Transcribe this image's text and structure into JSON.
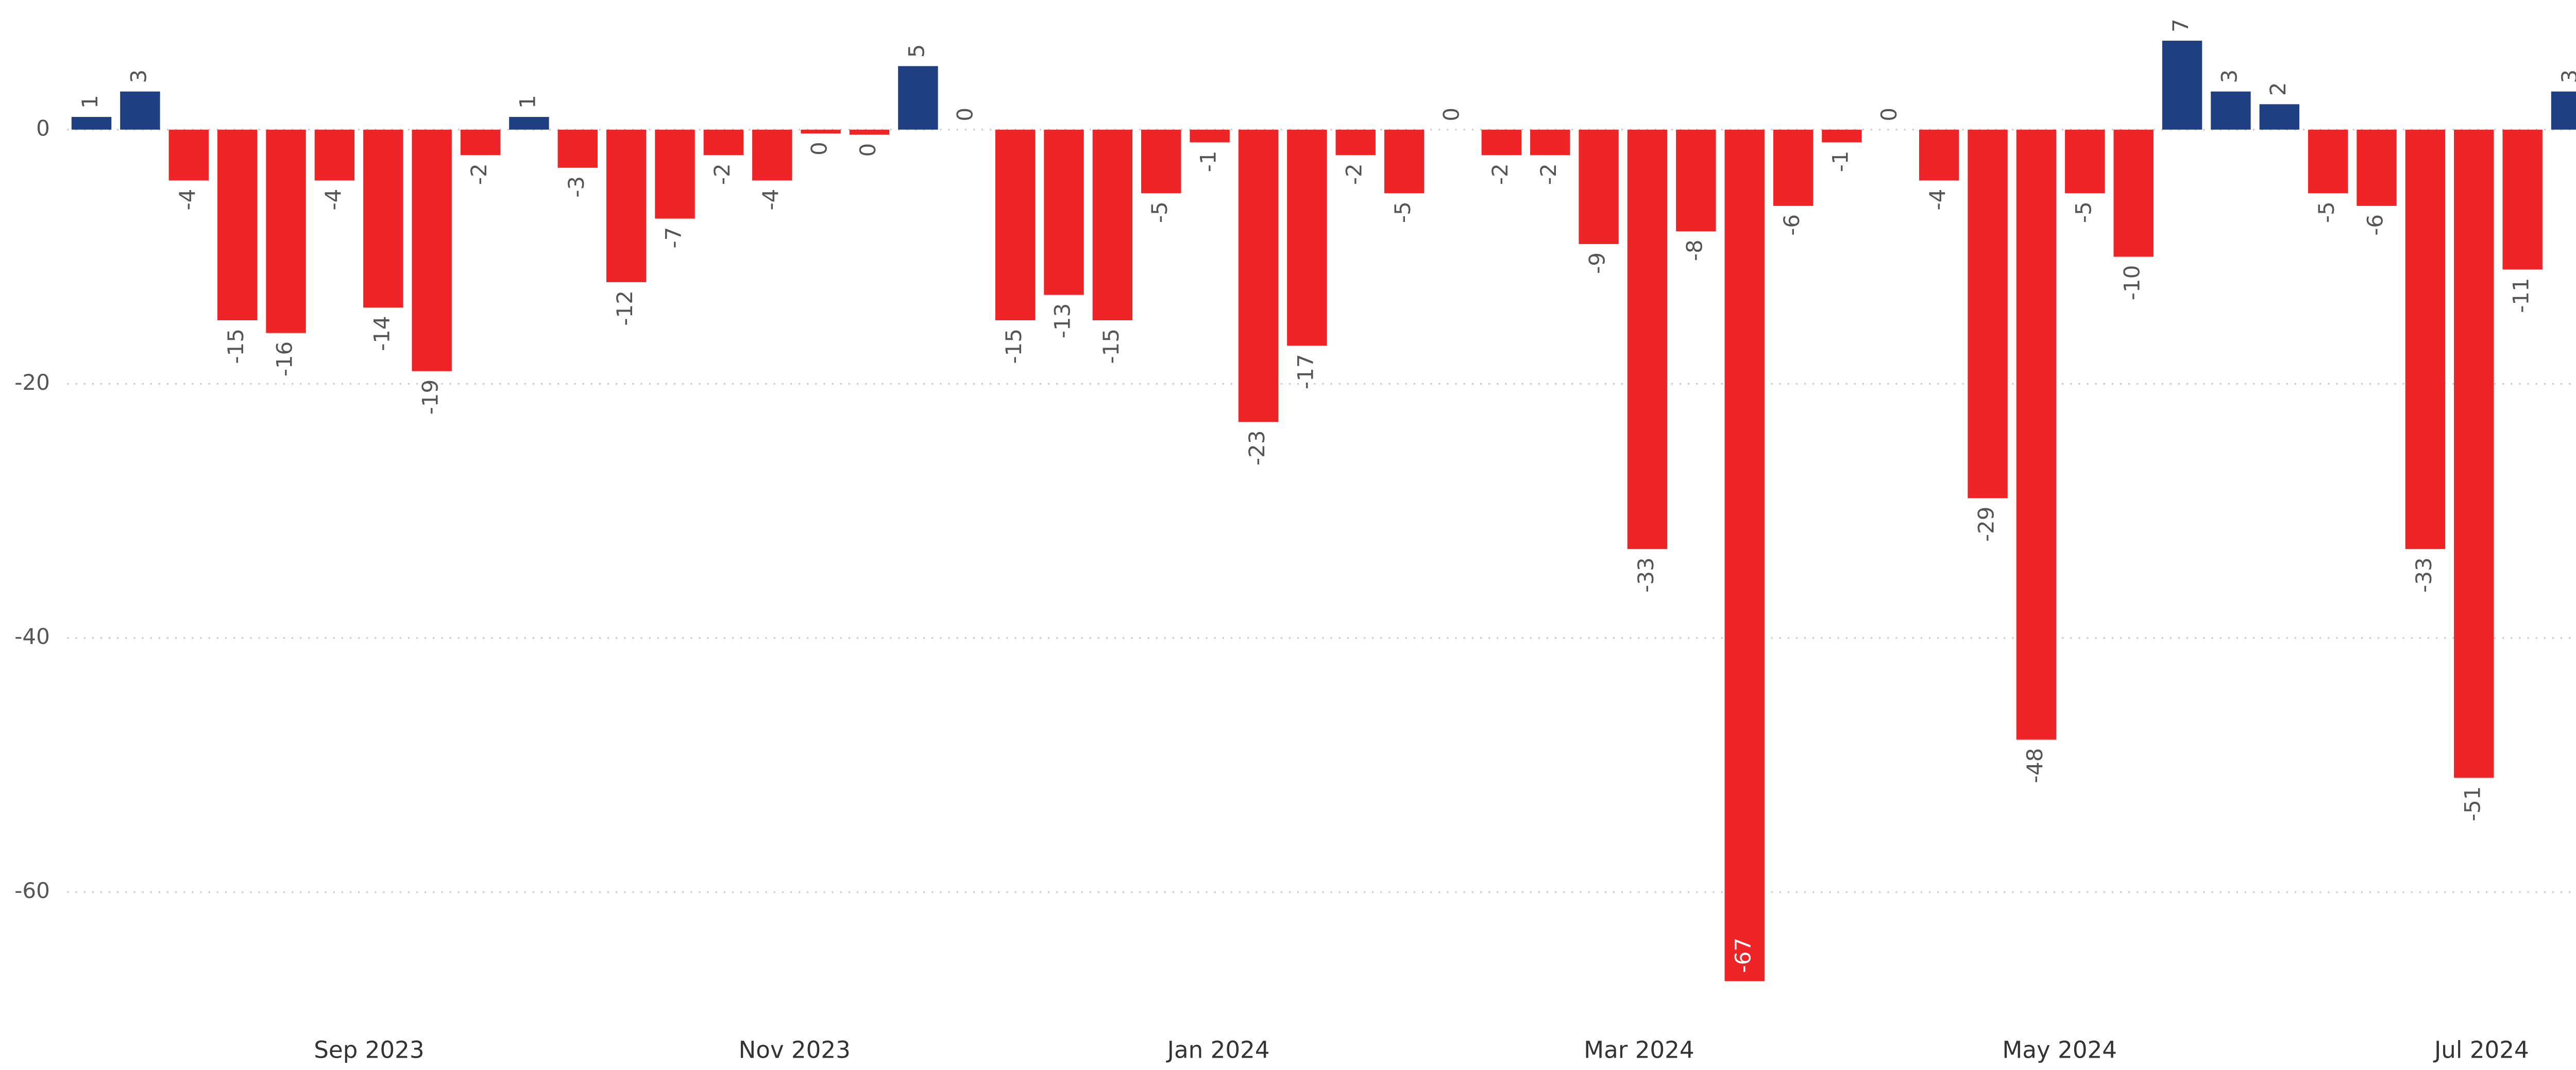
{
  "chart_data": {
    "type": "bar",
    "categories": [
      null,
      null,
      null,
      null,
      null,
      null,
      null,
      null,
      null,
      null,
      null,
      null,
      null,
      null,
      null,
      null,
      null,
      null,
      null,
      null,
      null,
      null,
      null,
      null,
      null,
      null,
      null,
      null,
      null,
      null,
      null,
      null,
      null,
      null,
      null,
      null,
      null,
      null,
      null,
      null,
      null,
      null,
      null,
      null,
      null,
      null,
      null,
      null,
      null,
      null,
      null,
      null
    ],
    "values": [
      1,
      3,
      -4,
      -15,
      -16,
      -4,
      -14,
      -19,
      -2,
      1,
      -3,
      -12,
      -7,
      -2,
      -4,
      -0.3,
      -0.4,
      5,
      0,
      -15,
      -13,
      -15,
      -5,
      -1,
      -23,
      -17,
      -2,
      -5,
      0,
      -2,
      -2,
      -9,
      -33,
      -8,
      -67,
      -6,
      -1,
      0,
      -4,
      -29,
      -48,
      -5,
      -10,
      7,
      3,
      2,
      -5,
      -6,
      -33,
      -51,
      -11,
      3
    ],
    "value_labels": [
      "1",
      "3",
      "-4",
      "-15",
      "-16",
      "-4",
      "-14",
      "-19",
      "-2",
      "1",
      "-3",
      "-12",
      "-7",
      "-2",
      "-4",
      "0",
      "0",
      "5",
      "0",
      "-15",
      "-13",
      "-15",
      "-5",
      "-1",
      "-23",
      "-17",
      "-2",
      "-5",
      "0",
      "-2",
      "-2",
      "-9",
      "-33",
      "-8",
      "-67",
      "-6",
      "-1",
      "0",
      "-4",
      "-29",
      "-48",
      "-5",
      "-10",
      "7",
      "3",
      "2",
      "-5",
      "-6",
      "-33",
      "-51",
      "-11",
      "3"
    ],
    "positive_color": "#1f3f83",
    "negative_color": "#ef2426",
    "ylim": [
      -70,
      10
    ],
    "yticks": [
      0,
      -20,
      -40,
      -60
    ],
    "grid": true,
    "xticks": [
      {
        "value": 5.71,
        "label": "Sep 2023"
      },
      {
        "value": 14.46,
        "label": "Nov 2023"
      },
      {
        "value": 23.18,
        "label": "Jan 2024"
      },
      {
        "value": 31.83,
        "label": "Mar 2024"
      },
      {
        "value": 40.48,
        "label": "May 2024"
      },
      {
        "value": 49.16,
        "label": "Jul 2024"
      }
    ]
  }
}
